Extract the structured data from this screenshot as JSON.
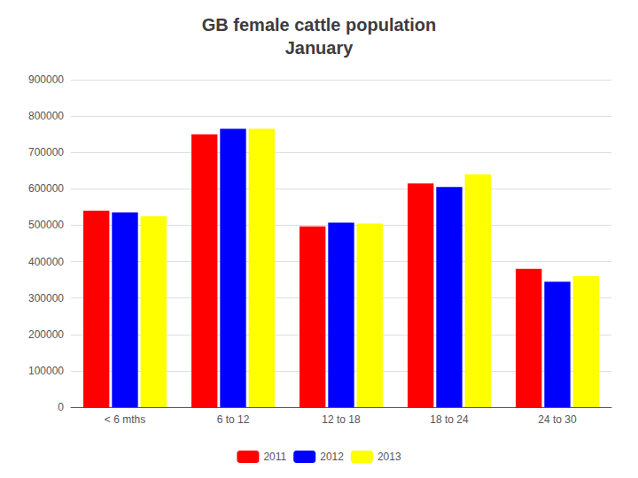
{
  "chart_data": {
    "type": "bar",
    "title": "GB female cattle population\nJanuary",
    "categories": [
      "< 6 mths",
      "6 to 12",
      "12 to 18",
      "18 to 24",
      "24 to 30"
    ],
    "series": [
      {
        "name": "2011",
        "color": "#FF0000",
        "values": [
          540000,
          750000,
          497000,
          615000,
          380000
        ]
      },
      {
        "name": "2012",
        "color": "#0000FF",
        "values": [
          535000,
          765000,
          507000,
          605000,
          345000
        ]
      },
      {
        "name": "2013",
        "color": "#FFFF00",
        "values": [
          525000,
          765000,
          505000,
          640000,
          360000
        ]
      }
    ],
    "ylim": [
      0,
      900000
    ],
    "yticks": [
      0,
      100000,
      200000,
      300000,
      400000,
      500000,
      600000,
      700000,
      800000,
      900000
    ],
    "grid": true,
    "legend": "bottom"
  }
}
